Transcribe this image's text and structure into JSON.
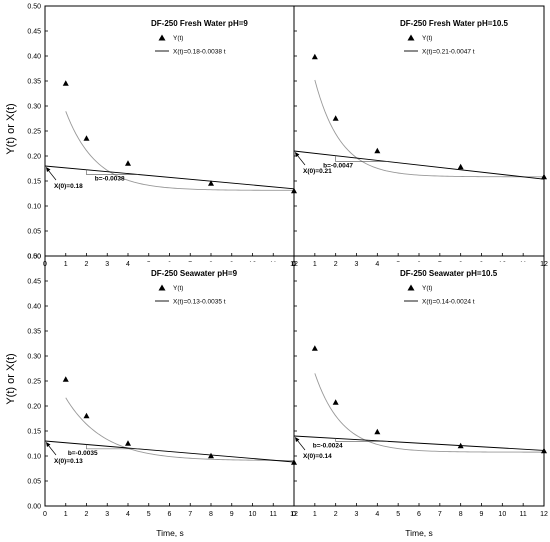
{
  "figure": {
    "y_axis_title": "Y(t) or X(t)",
    "x_axis_title": "Time, s",
    "colors": {
      "line": "#000000",
      "fit_curve": "#999999",
      "frame": "#000000",
      "background": "#ffffff"
    },
    "marker": "filled-triangle"
  },
  "chart_data": [
    {
      "type": "scatter",
      "title": "DF-250 Fresh Water pH=9",
      "xlim": [
        0,
        12
      ],
      "ylim": [
        0,
        0.5
      ],
      "x_ticks": [
        "0",
        "1",
        "2",
        "3",
        "4",
        "5",
        "6",
        "7",
        "8",
        "9",
        "10",
        "11",
        "12"
      ],
      "y_ticks": [
        "0.00",
        "0.05",
        "0.10",
        "0.15",
        "0.20",
        "0.25",
        "0.30",
        "0.35",
        "0.40",
        "0.45",
        "0.50"
      ],
      "series": [
        {
          "name": "Y(t)",
          "x": [
            1,
            2,
            4,
            8,
            12
          ],
          "y": [
            0.345,
            0.235,
            0.185,
            0.145,
            0.13
          ]
        },
        {
          "name": "X(t)=0.18-0.0038 t",
          "intercept": 0.18,
          "slope": -0.0038
        }
      ],
      "curve": {
        "a": 0.1312,
        "b": 0.3138,
        "c": 0.6855
      },
      "slope_label": "b=-0.0038",
      "intercept_label": "X(0)=0.18",
      "legend_position": "top-right"
    },
    {
      "type": "scatter",
      "title": "DF-250 Fresh Water pH=10.5",
      "xlim": [
        0,
        12
      ],
      "ylim": [
        0,
        0.5
      ],
      "x_ticks": [
        "0",
        "1",
        "2",
        "3",
        "4",
        "5",
        "6",
        "7",
        "8",
        "9",
        "10",
        "11",
        "12"
      ],
      "y_ticks": [
        "0.00",
        "0.05",
        "0.10",
        "0.15",
        "0.20",
        "0.25",
        "0.30",
        "0.35",
        "0.40",
        "0.45",
        "0.50"
      ],
      "series": [
        {
          "name": "Y(t)",
          "x": [
            1,
            2,
            4,
            8,
            12
          ],
          "y": [
            0.398,
            0.275,
            0.21,
            0.178,
            0.158
          ]
        },
        {
          "name": "X(t)=0.21-0.0047 t",
          "intercept": 0.21,
          "slope": -0.0047
        }
      ],
      "curve": {
        "a": 0.1584,
        "b": 0.436,
        "c": 0.8113
      },
      "slope_label": "b=-0.0047",
      "intercept_label": "X(0)=0.21",
      "legend_position": "top-right"
    },
    {
      "type": "scatter",
      "title": "DF-250 Seawater pH=9",
      "xlim": [
        0,
        12
      ],
      "ylim": [
        0,
        0.5
      ],
      "x_ticks": [
        "0",
        "1",
        "2",
        "3",
        "4",
        "5",
        "6",
        "7",
        "8",
        "9",
        "10",
        "11",
        "12"
      ],
      "y_ticks": [
        "0.00",
        "0.05",
        "0.10",
        "0.15",
        "0.20",
        "0.25",
        "0.30",
        "0.35",
        "0.40",
        "0.45",
        "0.50"
      ],
      "series": [
        {
          "name": "Y(t)",
          "x": [
            1,
            2,
            4,
            8,
            12
          ],
          "y": [
            0.253,
            0.18,
            0.125,
            0.1,
            0.087
          ]
        },
        {
          "name": "X(t)=0.13-0.0035 t",
          "intercept": 0.13,
          "slope": -0.0035
        }
      ],
      "curve": {
        "a": 0.0907,
        "b": 0.2166,
        "c": 0.5442
      },
      "slope_label": "b=-0.0035",
      "intercept_label": "X(0)=0.13",
      "legend_position": "top-right"
    },
    {
      "type": "scatter",
      "title": "DF-250 Seawater pH=10.5",
      "xlim": [
        0,
        12
      ],
      "ylim": [
        0,
        0.5
      ],
      "x_ticks": [
        "0",
        "1",
        "2",
        "3",
        "4",
        "5",
        "6",
        "7",
        "8",
        "9",
        "10",
        "11",
        "12"
      ],
      "y_ticks": [
        "0.00",
        "0.05",
        "0.10",
        "0.15",
        "0.20",
        "0.25",
        "0.30",
        "0.35",
        "0.40",
        "0.45",
        "0.50"
      ],
      "series": [
        {
          "name": "Y(t)",
          "x": [
            1,
            2,
            4,
            8,
            12
          ],
          "y": [
            0.315,
            0.207,
            0.148,
            0.12,
            0.11
          ]
        },
        {
          "name": "X(t)=0.14-0.0024 t",
          "intercept": 0.14,
          "slope": -0.0024
        }
      ],
      "curve": {
        "a": 0.1077,
        "b": 0.3419,
        "c": 0.7743
      },
      "slope_label": "b=-0.0024",
      "intercept_label": "X(0)=0.14",
      "legend_position": "top-right"
    }
  ]
}
